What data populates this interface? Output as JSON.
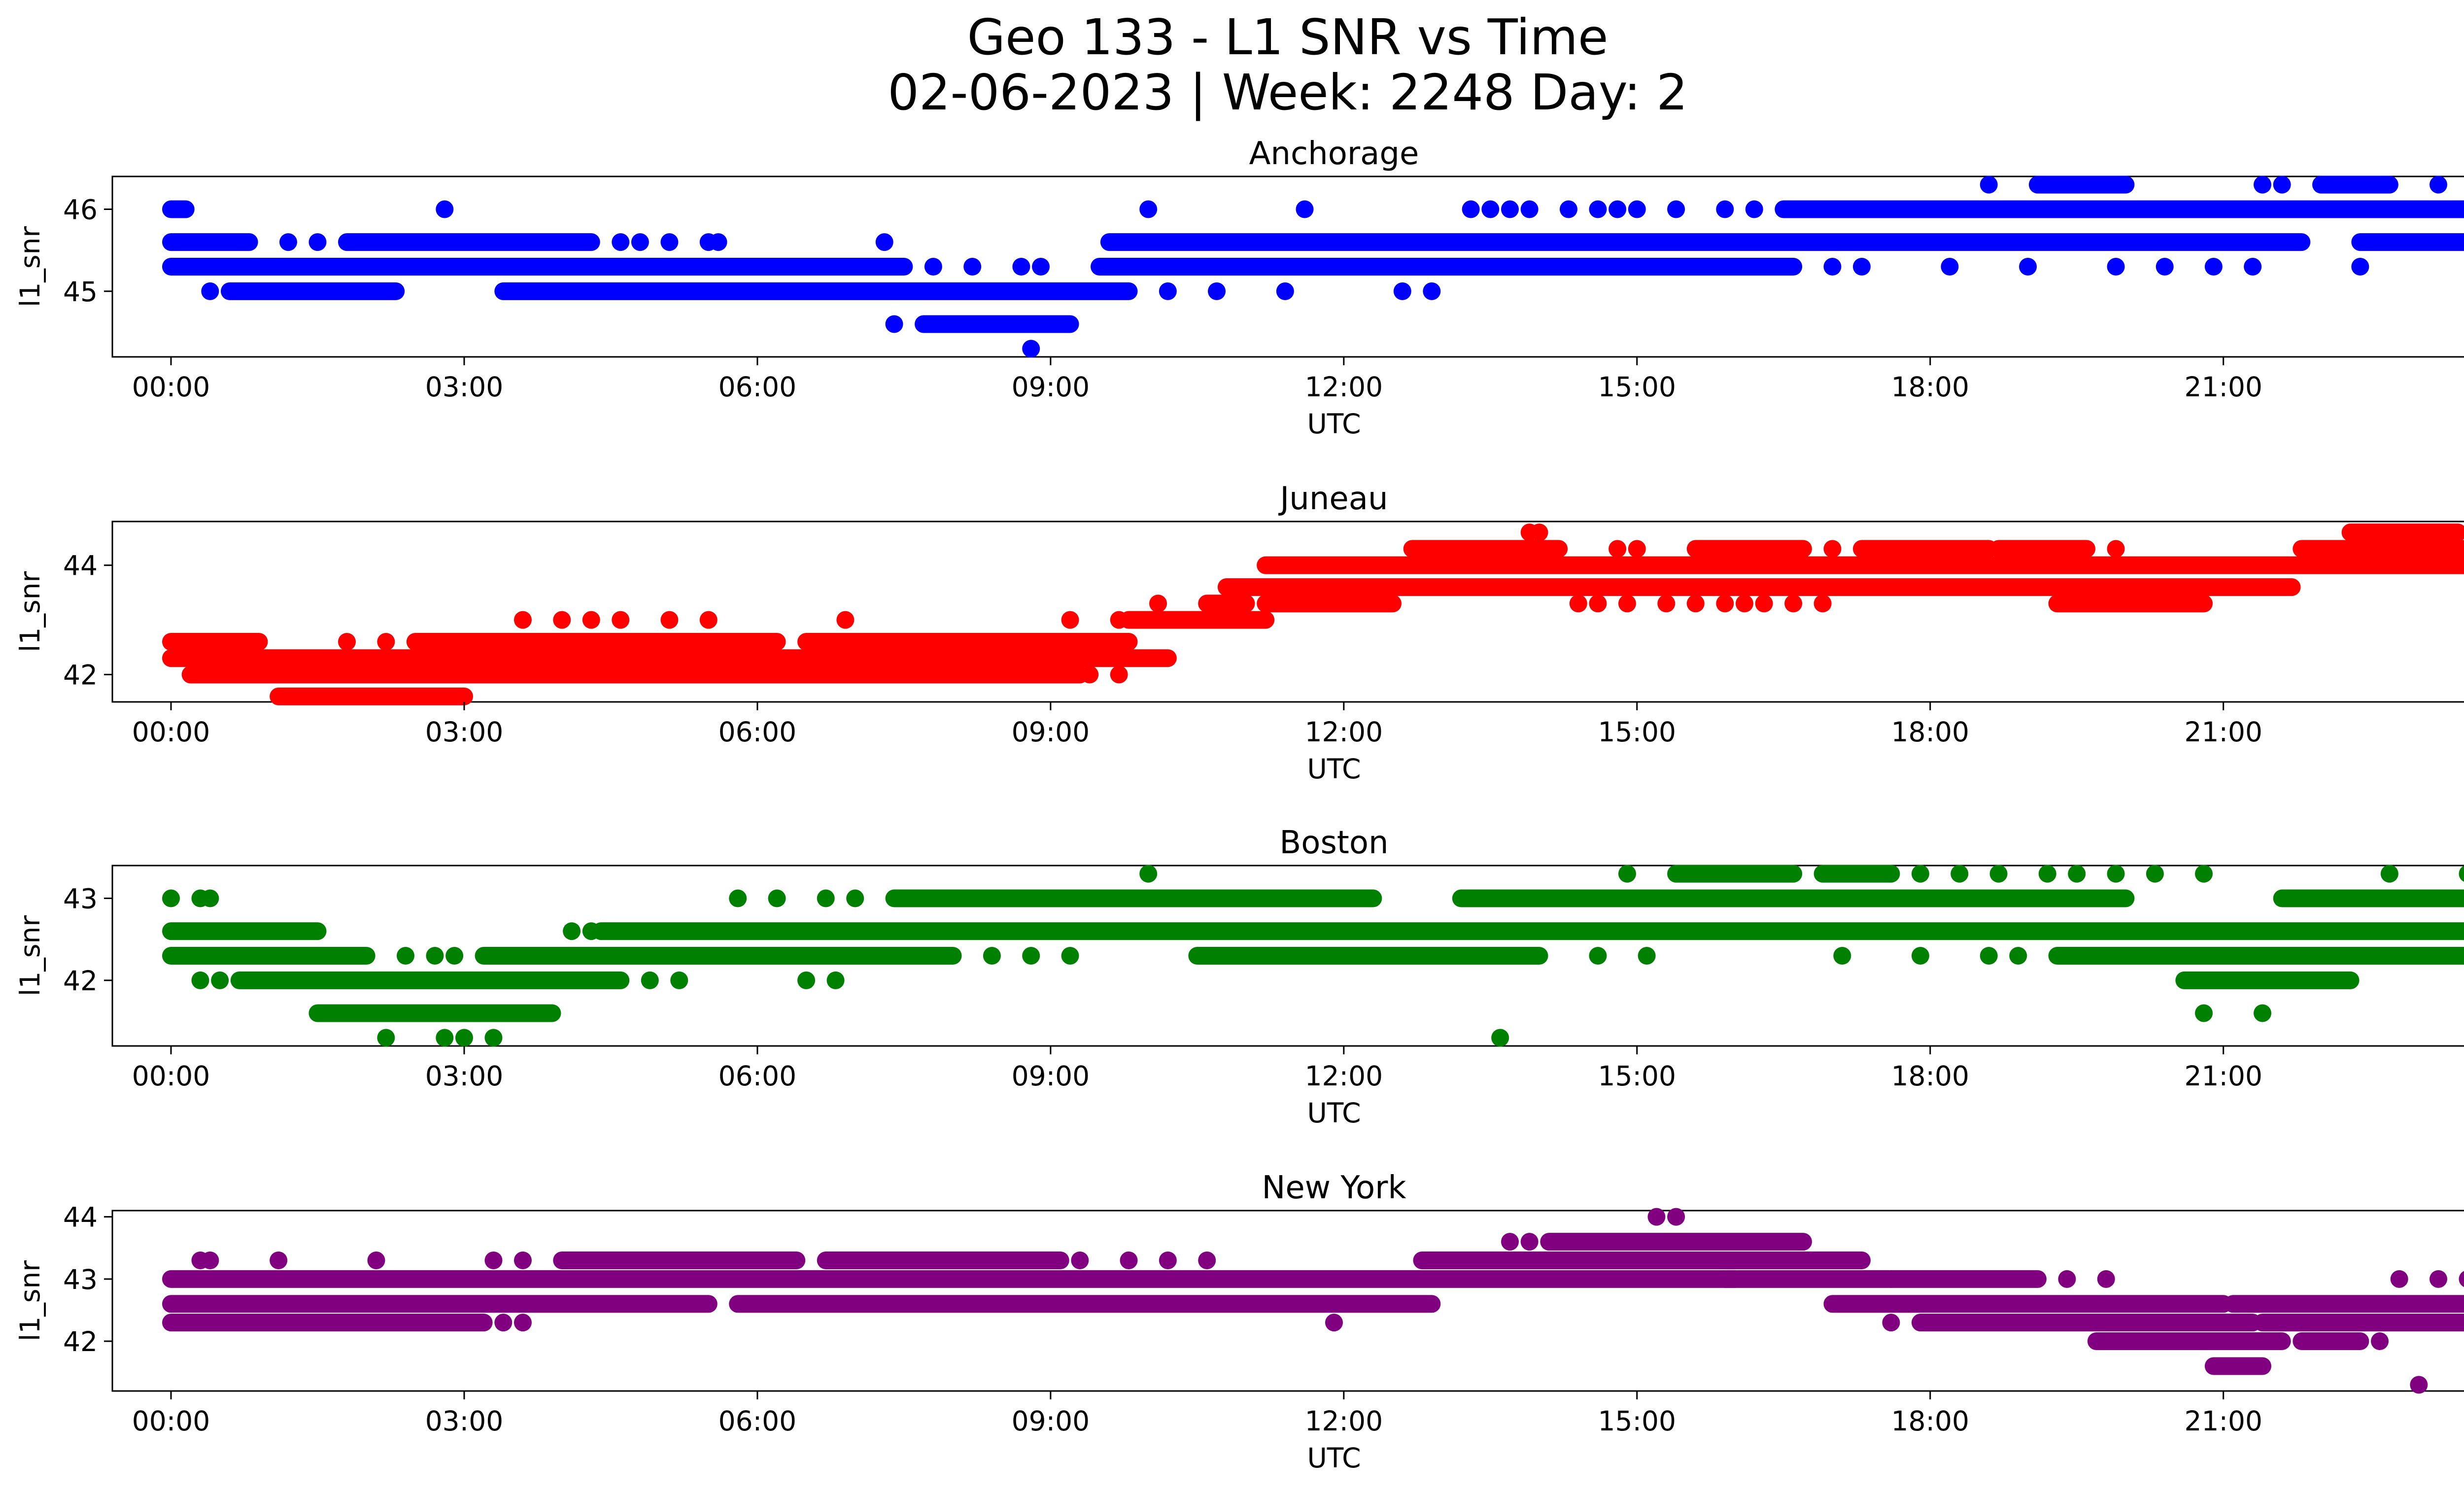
{
  "figure": {
    "title_line1": "Geo 133 - L1 SNR vs Time",
    "title_line2": "02-06-2023 | Week: 2248 Day: 2"
  },
  "chart_data": [
    {
      "type": "scatter",
      "title": "Anchorage",
      "xlabel": "UTC",
      "ylabel": "l1_snr",
      "color": "#0000ff",
      "xlim": [
        -0.6,
        24.4
      ],
      "ylim": [
        44.2,
        46.4
      ],
      "xticks": [
        0,
        3,
        6,
        9,
        12,
        15,
        18,
        21,
        24
      ],
      "xtick_labels": [
        "00:00",
        "03:00",
        "06:00",
        "09:00",
        "12:00",
        "15:00",
        "18:00",
        "21:00",
        "00:00"
      ],
      "yticks": [
        45,
        46
      ],
      "ytick_labels": [
        "45",
        "46"
      ],
      "bands": [
        {
          "y": 46.0,
          "runs": [
            [
              0.0,
              0.15
            ],
            [
              16.5,
              24.0
            ]
          ],
          "points": [
            2.8,
            10.0,
            11.6,
            13.3,
            13.5,
            13.7,
            13.9,
            14.3,
            14.6,
            14.8,
            15.0,
            15.4,
            15.9,
            16.2
          ]
        },
        {
          "y": 45.6,
          "runs": [
            [
              0.0,
              0.8
            ],
            [
              1.8,
              4.3
            ],
            [
              9.6,
              21.8
            ],
            [
              22.4,
              24.0
            ]
          ],
          "points": [
            1.2,
            1.5,
            4.6,
            4.8,
            5.1,
            5.5,
            5.6,
            7.3
          ]
        },
        {
          "y": 45.3,
          "runs": [
            [
              0.0,
              7.5
            ],
            [
              9.5,
              16.6
            ]
          ],
          "points": [
            7.8,
            8.2,
            8.7,
            8.9,
            17.0,
            17.3,
            18.2,
            19.0,
            19.9,
            20.4,
            20.9,
            21.3,
            22.4
          ]
        },
        {
          "y": 45.0,
          "runs": [
            [
              0.6,
              2.3
            ],
            [
              3.4,
              9.8
            ]
          ],
          "points": [
            0.4,
            10.2,
            10.7,
            11.4,
            12.6,
            12.9
          ]
        },
        {
          "y": 44.6,
          "runs": [
            [
              7.7,
              9.2
            ]
          ],
          "points": [
            7.4
          ]
        },
        {
          "y": 44.3,
          "runs": [],
          "points": [
            8.8
          ]
        },
        {
          "y": 46.3,
          "runs": [
            [
              19.1,
              20.0
            ],
            [
              22.0,
              22.7
            ]
          ],
          "points": [
            18.6,
            21.4,
            21.6,
            23.2,
            23.6
          ]
        }
      ]
    },
    {
      "type": "scatter",
      "title": "Juneau",
      "xlabel": "UTC",
      "ylabel": "l1_snr",
      "color": "#ff0000",
      "xlim": [
        -0.6,
        24.4
      ],
      "ylim": [
        41.5,
        44.8
      ],
      "xticks": [
        0,
        3,
        6,
        9,
        12,
        15,
        18,
        21,
        24
      ],
      "xtick_labels": [
        "00:00",
        "03:00",
        "06:00",
        "09:00",
        "12:00",
        "15:00",
        "18:00",
        "21:00",
        "00:00"
      ],
      "yticks": [
        42,
        44
      ],
      "ytick_labels": [
        "42",
        "44"
      ],
      "bands": [
        {
          "y": 42.6,
          "runs": [
            [
              0.0,
              0.9
            ],
            [
              2.5,
              6.2
            ],
            [
              6.5,
              9.8
            ]
          ],
          "points": [
            1.8,
            2.2
          ]
        },
        {
          "y": 42.3,
          "runs": [
            [
              0.0,
              10.2
            ]
          ],
          "points": []
        },
        {
          "y": 42.0,
          "runs": [
            [
              0.2,
              9.3
            ],
            [
              6.1,
              7.2
            ]
          ],
          "points": [
            4.2,
            5.0,
            5.8,
            9.4,
            9.7
          ]
        },
        {
          "y": 41.6,
          "runs": [
            [
              1.1,
              3.0
            ]
          ],
          "points": []
        },
        {
          "y": 43.0,
          "runs": [
            [
              9.8,
              11.2
            ]
          ],
          "points": [
            3.6,
            4.0,
            4.3,
            4.6,
            5.1,
            5.5,
            6.9,
            9.2,
            9.7
          ]
        },
        {
          "y": 43.3,
          "runs": [
            [
              10.6,
              11.0
            ]
          ],
          "points": [
            10.1
          ]
        },
        {
          "y": 43.6,
          "runs": [
            [
              10.8,
              21.7
            ]
          ],
          "points": []
        },
        {
          "y": 44.0,
          "runs": [
            [
              11.2,
              24.0
            ]
          ],
          "points": []
        },
        {
          "y": 44.3,
          "runs": [
            [
              12.7,
              14.2
            ],
            [
              15.6,
              16.7
            ],
            [
              17.3,
              18.6
            ],
            [
              18.7,
              19.6
            ],
            [
              21.8,
              24.0
            ]
          ],
          "points": [
            14.8,
            15.0,
            17.0,
            19.9
          ]
        },
        {
          "y": 43.3,
          "runs": [
            [
              11.2,
              12.5
            ],
            [
              19.3,
              20.8
            ]
          ],
          "points": [
            14.4,
            14.6,
            14.9,
            15.3,
            15.6,
            15.9,
            16.1,
            16.3,
            16.6,
            16.9
          ]
        },
        {
          "y": 44.6,
          "runs": [
            [
              22.3,
              23.4
            ]
          ],
          "points": [
            13.9,
            14.0,
            23.6
          ]
        },
        {
          "y": 43.6,
          "runs": [],
          "points": [
            23.9
          ]
        }
      ]
    },
    {
      "type": "scatter",
      "title": "Boston",
      "xlabel": "UTC",
      "ylabel": "l1_snr",
      "color": "#008000",
      "xlim": [
        -0.6,
        24.4
      ],
      "ylim": [
        41.2,
        43.4
      ],
      "xticks": [
        0,
        3,
        6,
        9,
        12,
        15,
        18,
        21,
        24
      ],
      "xtick_labels": [
        "00:00",
        "03:00",
        "06:00",
        "09:00",
        "12:00",
        "15:00",
        "18:00",
        "21:00",
        "00:00"
      ],
      "yticks": [
        42,
        43
      ],
      "ytick_labels": [
        "42",
        "43"
      ],
      "bands": [
        {
          "y": 43.0,
          "runs": [
            [
              7.4,
              12.3
            ],
            [
              13.2,
              20.0
            ],
            [
              21.6,
              24.0
            ]
          ],
          "points": [
            0.0,
            0.3,
            0.4,
            5.8,
            6.2,
            6.7,
            7.0
          ]
        },
        {
          "y": 42.6,
          "runs": [
            [
              0.0,
              1.5
            ],
            [
              4.4,
              24.0
            ]
          ],
          "points": [
            4.1,
            4.3
          ]
        },
        {
          "y": 42.3,
          "runs": [
            [
              0.0,
              2.0
            ],
            [
              3.2,
              8.0
            ],
            [
              10.5,
              14.0
            ],
            [
              19.3,
              24.0
            ]
          ],
          "points": [
            2.4,
            2.7,
            2.9,
            8.4,
            8.8,
            9.2,
            14.6,
            15.1,
            17.1,
            17.9,
            18.6,
            18.9
          ]
        },
        {
          "y": 42.0,
          "runs": [
            [
              0.7,
              4.6
            ],
            [
              20.6,
              22.3
            ]
          ],
          "points": [
            0.3,
            0.5,
            4.9,
            5.2,
            6.5,
            6.8
          ]
        },
        {
          "y": 41.6,
          "runs": [
            [
              1.5,
              3.9
            ]
          ],
          "points": [
            20.8,
            21.4
          ]
        },
        {
          "y": 41.3,
          "runs": [],
          "points": [
            2.2,
            2.8,
            3.0,
            3.3,
            13.6
          ]
        },
        {
          "y": 43.3,
          "runs": [
            [
              15.4,
              16.6
            ],
            [
              16.9,
              17.6
            ]
          ],
          "points": [
            10.0,
            14.9,
            17.9,
            18.3,
            18.7,
            19.2,
            19.5,
            19.9,
            20.3,
            20.8,
            22.7,
            23.5,
            23.9
          ]
        }
      ]
    },
    {
      "type": "scatter",
      "title": "New York",
      "xlabel": "UTC",
      "ylabel": "l1_snr",
      "color": "#800080",
      "xlim": [
        -0.6,
        24.4
      ],
      "ylim": [
        41.2,
        44.1
      ],
      "xticks": [
        0,
        3,
        6,
        9,
        12,
        15,
        18,
        21,
        24
      ],
      "xtick_labels": [
        "00:00",
        "03:00",
        "06:00",
        "09:00",
        "12:00",
        "15:00",
        "18:00",
        "21:00",
        "00:00"
      ],
      "yticks": [
        42,
        43,
        44
      ],
      "ytick_labels": [
        "42",
        "43",
        "44"
      ],
      "bands": [
        {
          "y": 43.0,
          "runs": [
            [
              0.0,
              16.0
            ],
            [
              15.9,
              17.6
            ],
            [
              17.6,
              19.1
            ]
          ],
          "points": [
            19.4,
            19.8,
            22.8,
            23.2,
            23.5,
            23.8
          ]
        },
        {
          "y": 42.6,
          "runs": [
            [
              0.0,
              5.5
            ],
            [
              5.8,
              12.9
            ],
            [
              17.0,
              21.0
            ],
            [
              21.1,
              24.0
            ]
          ],
          "points": []
        },
        {
          "y": 42.3,
          "runs": [
            [
              0.0,
              3.2
            ],
            [
              17.9,
              21.3
            ],
            [
              21.4,
              24.0
            ]
          ],
          "points": [
            3.4,
            3.6,
            11.9,
            17.6
          ]
        },
        {
          "y": 43.3,
          "runs": [
            [
              4.0,
              6.4
            ],
            [
              6.7,
              9.1
            ],
            [
              12.8,
              17.3
            ]
          ],
          "points": [
            0.3,
            0.4,
            1.1,
            2.1,
            3.3,
            3.6,
            9.3,
            9.8,
            10.2,
            10.6
          ]
        },
        {
          "y": 43.6,
          "runs": [
            [
              14.1,
              16.7
            ]
          ],
          "points": [
            13.7,
            13.9
          ]
        },
        {
          "y": 44.0,
          "runs": [],
          "points": [
            15.2,
            15.4
          ]
        },
        {
          "y": 42.0,
          "runs": [
            [
              19.7,
              21.6
            ],
            [
              21.8,
              22.4
            ]
          ],
          "points": [
            22.6
          ]
        },
        {
          "y": 41.6,
          "runs": [
            [
              20.9,
              21.4
            ]
          ],
          "points": []
        },
        {
          "y": 41.3,
          "runs": [],
          "points": [
            23.0
          ]
        }
      ]
    }
  ]
}
